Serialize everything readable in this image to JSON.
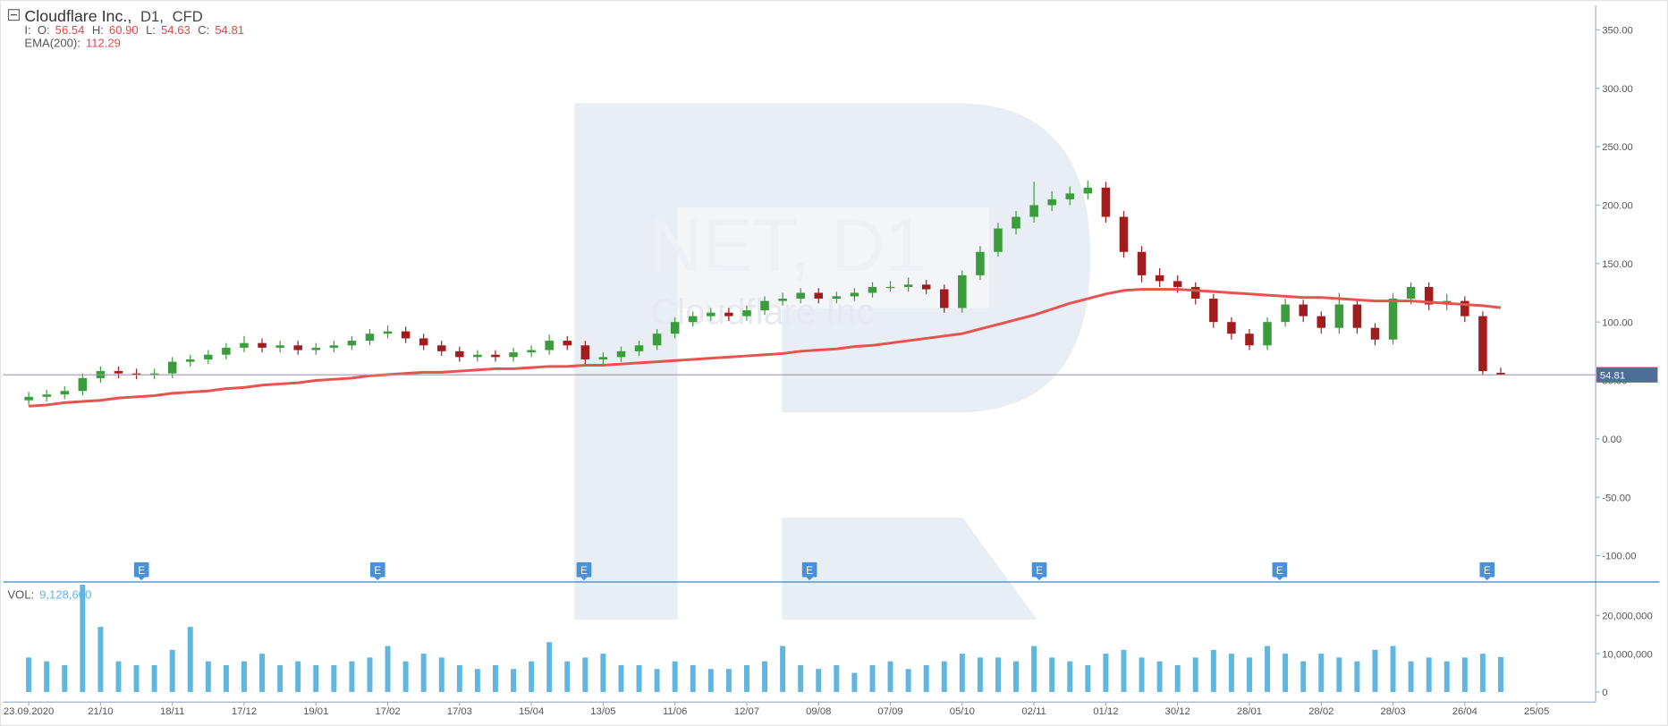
{
  "chart_data": {
    "type": "candlestick",
    "title": "Cloudflare Inc.,",
    "timeframe": "D1,",
    "instrument_type": "CFD",
    "legend_prefix": "I:",
    "ohlc_names": [
      "O:",
      "H:",
      "L:",
      "C:"
    ],
    "last_labels": [
      "56.54",
      "60.90",
      "54.63",
      "54.81"
    ],
    "watermark": [
      "NET, D1",
      "Cloudflare Inc"
    ],
    "events": [
      "E",
      "E",
      "E",
      "E",
      "E",
      "E",
      "E"
    ],
    "categories": [
      "23.09.2020",
      null,
      null,
      null,
      "21/10",
      null,
      null,
      null,
      "18/11",
      null,
      null,
      null,
      "17/12",
      null,
      null,
      null,
      "19/01",
      null,
      null,
      null,
      "17/02",
      null,
      null,
      null,
      "17/03",
      null,
      null,
      null,
      "15/04",
      null,
      null,
      null,
      "13/05",
      null,
      null,
      null,
      "11/06",
      null,
      null,
      null,
      "12/07",
      null,
      null,
      null,
      "09/08",
      null,
      null,
      null,
      "07/09",
      null,
      null,
      null,
      "05/10",
      null,
      null,
      null,
      "02/11",
      null,
      null,
      null,
      "01/12",
      null,
      null,
      null,
      "30/12",
      null,
      null,
      null,
      "28/01",
      null,
      null,
      null,
      "28/02",
      null,
      null,
      null,
      "28/03",
      null,
      null,
      null,
      "26/04",
      null,
      null,
      null,
      "25/05",
      null
    ],
    "open": [
      33,
      36,
      38,
      41,
      52,
      58,
      56,
      55,
      56,
      66,
      68,
      72,
      78,
      82,
      78,
      80,
      76,
      78,
      80,
      84,
      90,
      92,
      86,
      80,
      75,
      70,
      72,
      70,
      74,
      76,
      84,
      80,
      68,
      70,
      75,
      80,
      90,
      100,
      105,
      108,
      105,
      110,
      118,
      120,
      125,
      120,
      122,
      125,
      130,
      130,
      132,
      128,
      112,
      140,
      160,
      180,
      190,
      200,
      205,
      210,
      215,
      190,
      160,
      140,
      135,
      130,
      120,
      100,
      90,
      80,
      100,
      115,
      105,
      95,
      115,
      95,
      85,
      120,
      130,
      115,
      118,
      105,
      56.54,
      null,
      null,
      null
    ],
    "high": [
      40,
      42,
      45,
      56,
      62,
      62,
      60,
      60,
      70,
      72,
      76,
      82,
      88,
      86,
      84,
      84,
      82,
      84,
      88,
      94,
      97,
      96,
      90,
      84,
      79,
      76,
      76,
      78,
      80,
      89,
      88,
      84,
      74,
      79,
      84,
      94,
      104,
      109,
      112,
      112,
      114,
      122,
      125,
      129,
      129,
      126,
      129,
      134,
      135,
      138,
      136,
      132,
      144,
      165,
      185,
      195,
      220,
      212,
      216,
      221,
      220,
      195,
      165,
      146,
      140,
      134,
      124,
      104,
      94,
      104,
      120,
      119,
      109,
      125,
      119,
      99,
      125,
      134,
      134,
      124,
      122,
      109,
      60.9,
      null,
      null,
      null
    ],
    "low": [
      29,
      32,
      34,
      37,
      48,
      52,
      51,
      51,
      52,
      62,
      64,
      68,
      74,
      74,
      74,
      72,
      72,
      74,
      76,
      80,
      86,
      82,
      76,
      71,
      66,
      66,
      66,
      66,
      70,
      72,
      76,
      64,
      63,
      66,
      71,
      76,
      86,
      96,
      101,
      101,
      101,
      106,
      114,
      116,
      116,
      116,
      118,
      121,
      126,
      126,
      124,
      108,
      108,
      136,
      156,
      175,
      185,
      195,
      200,
      205,
      185,
      155,
      134,
      130,
      125,
      115,
      95,
      85,
      76,
      76,
      96,
      100,
      90,
      90,
      90,
      80,
      81,
      115,
      110,
      110,
      100,
      55,
      54.63,
      null,
      null,
      null
    ],
    "close": [
      36,
      38,
      41,
      52,
      58,
      56,
      55,
      56,
      66,
      68,
      72,
      78,
      82,
      78,
      80,
      76,
      78,
      80,
      84,
      90,
      92,
      86,
      80,
      75,
      70,
      72,
      70,
      74,
      76,
      84,
      80,
      68,
      70,
      75,
      80,
      90,
      100,
      105,
      108,
      105,
      110,
      118,
      120,
      125,
      120,
      122,
      125,
      130,
      130,
      132,
      128,
      112,
      140,
      160,
      180,
      190,
      200,
      205,
      210,
      215,
      190,
      160,
      140,
      135,
      130,
      120,
      100,
      90,
      80,
      100,
      115,
      105,
      95,
      115,
      95,
      85,
      120,
      130,
      115,
      118,
      105,
      58,
      54.81,
      null,
      null,
      null
    ],
    "up_color": "#3a9c3a",
    "down_color": "#a11d1d",
    "ylim": [
      -122,
      371
    ],
    "yticks": [
      {
        "value": -100,
        "label": "-100.00"
      },
      {
        "value": -50,
        "label": "-50.00"
      },
      {
        "value": 0,
        "label": "0.00"
      },
      {
        "value": 50,
        "label": "50.00"
      },
      {
        "value": 100,
        "label": "100.00"
      },
      {
        "value": 150,
        "label": "150.00"
      },
      {
        "value": 200,
        "label": "200.00"
      },
      {
        "value": 250,
        "label": "250.00"
      },
      {
        "value": 300,
        "label": "300.00"
      },
      {
        "value": 350,
        "label": "350.00"
      }
    ],
    "ema": {
      "name": "EMA(200):",
      "color": "#e8524f",
      "last_label": "112.29",
      "values": [
        28,
        29,
        31,
        32,
        33,
        35,
        36,
        37,
        39,
        40,
        41,
        43,
        44,
        46,
        47,
        48,
        50,
        51,
        52,
        54,
        55,
        56,
        57,
        57,
        58,
        59,
        60,
        60,
        61,
        62,
        62,
        63,
        63,
        64,
        65,
        66,
        67,
        68,
        69,
        70,
        71,
        72,
        73,
        75,
        76,
        77,
        79,
        80,
        82,
        84,
        86,
        88,
        90,
        94,
        98,
        102,
        106,
        111,
        116,
        120,
        124,
        127,
        128,
        128,
        128,
        127,
        126,
        125,
        124,
        123,
        122,
        121,
        121,
        120,
        119,
        118,
        118,
        118,
        117,
        116,
        115,
        114,
        112.29,
        null,
        null,
        null
      ]
    },
    "volume": {
      "name": "VOL:",
      "color": "#5fb6e0",
      "last_label": "9,128,600",
      "values": [
        9000000,
        8000000,
        7000000,
        28000000,
        17000000,
        8000000,
        7000000,
        7000000,
        11000000,
        17000000,
        8000000,
        7000000,
        8000000,
        10000000,
        7000000,
        8000000,
        7000000,
        7000000,
        8000000,
        9000000,
        12000000,
        8000000,
        10000000,
        9000000,
        7000000,
        6000000,
        7000000,
        6000000,
        8000000,
        13000000,
        8000000,
        9000000,
        10000000,
        7000000,
        7000000,
        6000000,
        8000000,
        7000000,
        6000000,
        6000000,
        7000000,
        8000000,
        12000000,
        7000000,
        6000000,
        7000000,
        5000000,
        7000000,
        8000000,
        6000000,
        7000000,
        8000000,
        10000000,
        9000000,
        9000000,
        8000000,
        12000000,
        9000000,
        8000000,
        7000000,
        10000000,
        11000000,
        9000000,
        8000000,
        7000000,
        9000000,
        11000000,
        10000000,
        9000000,
        12000000,
        10000000,
        8000000,
        10000000,
        9000000,
        8000000,
        11000000,
        12000000,
        8000000,
        9000000,
        8000000,
        9000000,
        10000000,
        9128600,
        null,
        null,
        null
      ],
      "ylim": [
        -2500000,
        28300000
      ],
      "yticks": [
        0,
        {
          "value": 10000000,
          "label": "10,000,000"
        },
        {
          "value": 20000000,
          "label": "20,000,000"
        }
      ]
    }
  }
}
